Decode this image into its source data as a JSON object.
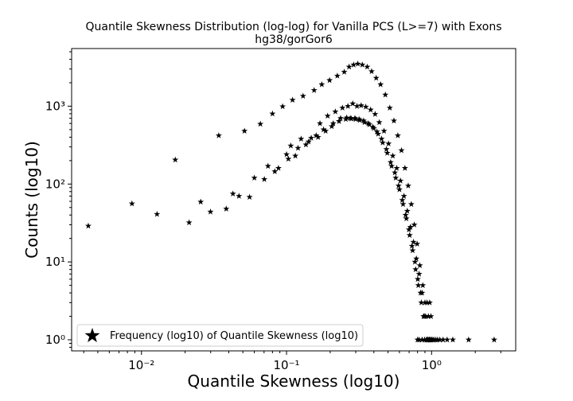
{
  "chart_data": {
    "type": "scatter",
    "title": "Quantile Skewness Distribution (log-log) for Vanilla PCS (L>=7) with Exons",
    "subtitle": "hg38/gorGor6",
    "xlabel": "Quantile Skewness (log10)",
    "ylabel": "Counts (log10)",
    "x_scale": "log",
    "y_scale": "log",
    "xlim": [
      0.0033,
      3.8
    ],
    "ylim": [
      0.72,
      5500
    ],
    "x_tick_labels": [
      "10⁻²",
      "10⁻¹",
      "10⁰"
    ],
    "x_tick_values": [
      0.01,
      0.1,
      1
    ],
    "y_tick_labels": [
      "10⁰",
      "10¹",
      "10²",
      "10³"
    ],
    "y_tick_values": [
      1,
      10,
      100,
      1000
    ],
    "grid": false,
    "legend": {
      "position": "lower-left",
      "entries": [
        "Frequency (log10) of Quantile Skewness (log10)"
      ]
    },
    "marker": "star",
    "marker_color": "#000000",
    "series": [
      {
        "name": "Frequency (log10) of Quantile Skewness (log10)",
        "points": [
          [
            0.0043,
            29
          ],
          [
            0.0086,
            56
          ],
          [
            0.0128,
            41
          ],
          [
            0.0171,
            205
          ],
          [
            0.0213,
            32
          ],
          [
            0.0256,
            59
          ],
          [
            0.0299,
            44
          ],
          [
            0.0341,
            420
          ],
          [
            0.0384,
            48
          ],
          [
            0.0427,
            75
          ],
          [
            0.047,
            70
          ],
          [
            0.0513,
            480
          ],
          [
            0.0556,
            68
          ],
          [
            0.06,
            120
          ],
          [
            0.066,
            590
          ],
          [
            0.0703,
            115
          ],
          [
            0.0745,
            170
          ],
          [
            0.08,
            800
          ],
          [
            0.083,
            145
          ],
          [
            0.088,
            160
          ],
          [
            0.094,
            990
          ],
          [
            0.1,
            240
          ],
          [
            0.103,
            210
          ],
          [
            0.107,
            310
          ],
          [
            0.11,
            1200
          ],
          [
            0.115,
            230
          ],
          [
            0.12,
            290
          ],
          [
            0.126,
            380
          ],
          [
            0.13,
            1350
          ],
          [
            0.136,
            320
          ],
          [
            0.142,
            350
          ],
          [
            0.148,
            390
          ],
          [
            0.155,
            1600
          ],
          [
            0.16,
            420
          ],
          [
            0.165,
            400
          ],
          [
            0.17,
            600
          ],
          [
            0.175,
            1900
          ],
          [
            0.18,
            500
          ],
          [
            0.186,
            480
          ],
          [
            0.192,
            750
          ],
          [
            0.198,
            2150
          ],
          [
            0.205,
            550
          ],
          [
            0.21,
            600
          ],
          [
            0.217,
            850
          ],
          [
            0.224,
            2450
          ],
          [
            0.23,
            640
          ],
          [
            0.236,
            700
          ],
          [
            0.243,
            950
          ],
          [
            0.25,
            2750
          ],
          [
            0.256,
            680
          ],
          [
            0.26,
            710
          ],
          [
            0.265,
            1000
          ],
          [
            0.27,
            3200
          ],
          [
            0.275,
            700
          ],
          [
            0.28,
            690
          ],
          [
            0.286,
            1080
          ],
          [
            0.29,
            3400
          ],
          [
            0.296,
            700
          ],
          [
            0.3,
            680
          ],
          [
            0.306,
            1000
          ],
          [
            0.31,
            3500
          ],
          [
            0.316,
            680
          ],
          [
            0.32,
            660
          ],
          [
            0.327,
            1020
          ],
          [
            0.333,
            3400
          ],
          [
            0.34,
            650
          ],
          [
            0.345,
            620
          ],
          [
            0.352,
            980
          ],
          [
            0.36,
            3200
          ],
          [
            0.366,
            600
          ],
          [
            0.372,
            580
          ],
          [
            0.38,
            900
          ],
          [
            0.386,
            2800
          ],
          [
            0.393,
            540
          ],
          [
            0.4,
            520
          ],
          [
            0.408,
            790
          ],
          [
            0.415,
            2300
          ],
          [
            0.42,
            470
          ],
          [
            0.428,
            440
          ],
          [
            0.436,
            620
          ],
          [
            0.445,
            1900
          ],
          [
            0.452,
            380
          ],
          [
            0.46,
            340
          ],
          [
            0.47,
            480
          ],
          [
            0.48,
            1400
          ],
          [
            0.488,
            280
          ],
          [
            0.495,
            250
          ],
          [
            0.505,
            330
          ],
          [
            0.515,
            950
          ],
          [
            0.522,
            190
          ],
          [
            0.53,
            170
          ],
          [
            0.54,
            230
          ],
          [
            0.55,
            650
          ],
          [
            0.558,
            140
          ],
          [
            0.566,
            120
          ],
          [
            0.575,
            160
          ],
          [
            0.585,
            420
          ],
          [
            0.592,
            95
          ],
          [
            0.6,
            85
          ],
          [
            0.61,
            110
          ],
          [
            0.62,
            270
          ],
          [
            0.628,
            62
          ],
          [
            0.636,
            55
          ],
          [
            0.645,
            70
          ],
          [
            0.655,
            160
          ],
          [
            0.662,
            40
          ],
          [
            0.67,
            36
          ],
          [
            0.68,
            45
          ],
          [
            0.69,
            95
          ],
          [
            0.698,
            26
          ],
          [
            0.706,
            22
          ],
          [
            0.715,
            28
          ],
          [
            0.725,
            55
          ],
          [
            0.732,
            16
          ],
          [
            0.74,
            14
          ],
          [
            0.75,
            18
          ],
          [
            0.76,
            30
          ],
          [
            0.768,
            10
          ],
          [
            0.776,
            8
          ],
          [
            0.785,
            11
          ],
          [
            0.795,
            17
          ],
          [
            0.803,
            6
          ],
          [
            0.81,
            5
          ],
          [
            0.82,
            7
          ],
          [
            0.83,
            9
          ],
          [
            0.84,
            4
          ],
          [
            0.85,
            3
          ],
          [
            0.86,
            4
          ],
          [
            0.87,
            5
          ],
          [
            0.88,
            2
          ],
          [
            0.89,
            2
          ],
          [
            0.9,
            3
          ],
          [
            0.91,
            2
          ],
          [
            0.92,
            1
          ],
          [
            0.93,
            3
          ],
          [
            0.94,
            1
          ],
          [
            0.95,
            2
          ],
          [
            0.96,
            1
          ],
          [
            0.97,
            3
          ],
          [
            0.98,
            1
          ],
          [
            0.99,
            2
          ],
          [
            1.0,
            1
          ],
          [
            1.02,
            1
          ],
          [
            1.04,
            1
          ],
          [
            1.07,
            1
          ],
          [
            1.1,
            1
          ],
          [
            1.14,
            1
          ],
          [
            1.2,
            1
          ],
          [
            1.28,
            1
          ],
          [
            1.4,
            1
          ],
          [
            1.8,
            1
          ],
          [
            2.7,
            1
          ],
          [
            0.8,
            1
          ],
          [
            0.82,
            1
          ],
          [
            0.86,
            1
          ],
          [
            0.895,
            1
          ],
          [
            0.925,
            1
          ],
          [
            0.945,
            1
          ],
          [
            0.965,
            1
          ],
          [
            0.985,
            1
          ]
        ]
      }
    ]
  }
}
